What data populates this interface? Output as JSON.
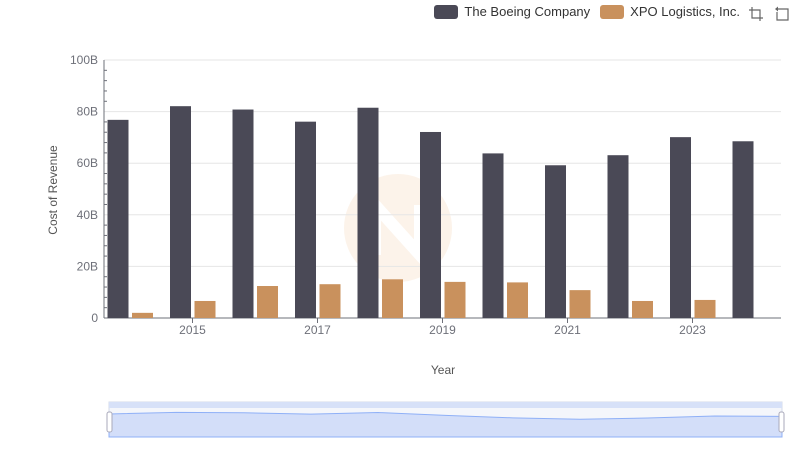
{
  "chart_data": {
    "type": "bar",
    "xlabel": "Year",
    "ylabel": "Cost of Revenue",
    "ylim": [
      0,
      100
    ],
    "y_unit": "B",
    "yticks": [
      "0",
      "20B",
      "40B",
      "60B",
      "80B",
      "100B"
    ],
    "x_tick_labels": [
      "2015",
      "2017",
      "2019",
      "2021",
      "2023"
    ],
    "categories": [
      "2014",
      "2015",
      "2016",
      "2017",
      "2018",
      "2019",
      "2020",
      "2021",
      "2022",
      "2023",
      "2024"
    ],
    "series": [
      {
        "name": "The Boeing Company",
        "color": "#4a4956",
        "values": [
          76.8,
          82.1,
          80.8,
          76.1,
          81.5,
          72.1,
          63.8,
          59.2,
          63.1,
          70.1,
          68.5
        ]
      },
      {
        "name": "XPO Logistics, Inc.",
        "color": "#c9915d",
        "values": [
          2.0,
          6.6,
          12.4,
          13.1,
          15.0,
          14.0,
          13.8,
          10.8,
          6.6,
          7.0,
          null
        ]
      }
    ],
    "grid": true,
    "legend_position": "top-right"
  },
  "toolbox": {
    "zoom_icon": "zoom-icon",
    "reset_icon": "restore-icon"
  },
  "colors": {
    "grid": "#e6e6e6",
    "axis": "#6e7079",
    "zoom_fill": "#e8eefc",
    "zoom_line": "#8fb0f7"
  }
}
